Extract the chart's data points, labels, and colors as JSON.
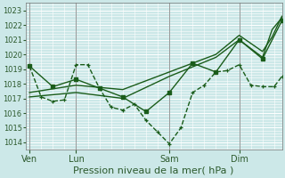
{
  "bg_color": "#cce8e8",
  "grid_color": "#ffffff",
  "line_color": "#1a5c1a",
  "xlabel": "Pression niveau de la mer( hPa )",
  "xlabel_fontsize": 8,
  "ylim": [
    1013.5,
    1023.5
  ],
  "yticks": [
    1014,
    1015,
    1016,
    1017,
    1018,
    1019,
    1020,
    1021,
    1022,
    1023
  ],
  "xtick_labels": [
    "Ven",
    "Lun",
    "Sam",
    "Dim"
  ],
  "xtick_positions": [
    2,
    26,
    74,
    110
  ],
  "vline_positions": [
    2,
    26,
    74,
    110
  ],
  "xlim": [
    0,
    132
  ],
  "line1_x": [
    2,
    8,
    14,
    20,
    26,
    32,
    38,
    44,
    50,
    56,
    62,
    68,
    74,
    80,
    86,
    92,
    98,
    104,
    110,
    116,
    122,
    128,
    132
  ],
  "line1_y": [
    1019.2,
    1017.1,
    1016.8,
    1016.9,
    1019.3,
    1019.3,
    1017.7,
    1016.4,
    1016.2,
    1016.6,
    1015.5,
    1014.7,
    1013.9,
    1015.0,
    1017.4,
    1017.9,
    1018.8,
    1018.9,
    1019.3,
    1017.9,
    1017.8,
    1017.8,
    1018.5
  ],
  "line2_x": [
    2,
    14,
    26,
    38,
    50,
    62,
    74,
    86,
    98,
    110,
    122,
    132
  ],
  "line2_y": [
    1019.2,
    1017.8,
    1018.3,
    1017.7,
    1017.1,
    1016.1,
    1017.4,
    1019.4,
    1018.8,
    1021.0,
    1019.7,
    1022.3
  ],
  "line3_x": [
    2,
    26,
    50,
    74,
    98,
    110,
    122,
    127,
    132
  ],
  "line3_y": [
    1017.1,
    1017.4,
    1017.0,
    1018.5,
    1019.8,
    1021.0,
    1019.8,
    1021.7,
    1022.5
  ],
  "line4_x": [
    2,
    26,
    50,
    74,
    98,
    110,
    122,
    127,
    132
  ],
  "line4_y": [
    1017.4,
    1017.9,
    1017.6,
    1018.8,
    1020.0,
    1021.3,
    1020.2,
    1021.2,
    1022.6
  ],
  "vline_color": "#888888",
  "tick_color": "#2d5a2d"
}
